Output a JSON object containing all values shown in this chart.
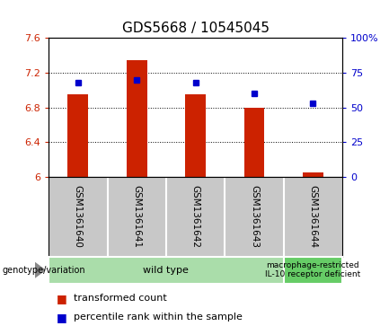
{
  "title": "GDS5668 / 10545045",
  "samples": [
    "GSM1361640",
    "GSM1361641",
    "GSM1361642",
    "GSM1361643",
    "GSM1361644"
  ],
  "transformed_count": [
    6.95,
    7.35,
    6.95,
    6.8,
    6.05
  ],
  "percentile_rank": [
    68,
    70,
    68,
    60,
    53
  ],
  "ylim_left": [
    6.0,
    7.6
  ],
  "ylim_right": [
    0,
    100
  ],
  "yticks_left": [
    6.0,
    6.4,
    6.8,
    7.2,
    7.6
  ],
  "ytick_labels_left": [
    "6",
    "6.4",
    "6.8",
    "7.2",
    "7.6"
  ],
  "yticks_right": [
    0,
    25,
    50,
    75,
    100
  ],
  "ytick_labels_right": [
    "0",
    "25",
    "50",
    "75",
    "100%"
  ],
  "bar_color": "#cc2200",
  "dot_color": "#0000cc",
  "bg_color": "#ffffff",
  "plot_bg": "#ffffff",
  "sample_bg": "#c8c8c8",
  "sample_divider": "#ffffff",
  "genotype_groups": [
    {
      "label": "wild type",
      "start": 0,
      "end": 4,
      "bg": "#aaddaa"
    },
    {
      "label": "macrophage-restricted\nIL-10 receptor deficient",
      "start": 4,
      "end": 5,
      "bg": "#66cc66"
    }
  ],
  "genotype_label": "genotype/variation",
  "legend_items": [
    {
      "color": "#cc2200",
      "label": "transformed count"
    },
    {
      "color": "#0000cc",
      "label": "percentile rank within the sample"
    }
  ],
  "bar_width": 0.35,
  "title_fontsize": 11,
  "tick_fontsize": 8,
  "sample_fontsize": 7.5,
  "geno_fontsize": 8,
  "geno_fontsize_small": 6.5,
  "legend_fontsize": 8
}
